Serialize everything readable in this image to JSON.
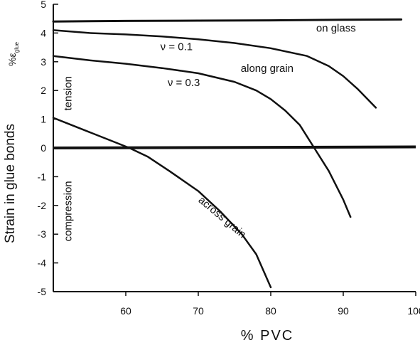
{
  "chart_data": {
    "type": "line",
    "xlabel": "% PVC",
    "ylabel": "Strain in glue bonds",
    "ylabel_unit": "%ε",
    "ylabel_unit_sub": "glue",
    "xlim": [
      50,
      100
    ],
    "ylim": [
      -5,
      5
    ],
    "x_ticks": [
      60,
      70,
      80,
      90,
      100
    ],
    "y_ticks": [
      5,
      4,
      3,
      2,
      1,
      0,
      -1,
      -2,
      -3,
      -4,
      -5
    ],
    "x_tick_labels": [
      "60",
      "70",
      "80",
      "90",
      "100"
    ],
    "y_tick_labels": [
      "5",
      "4",
      "3",
      "2",
      "1",
      "0",
      "-1",
      "-2",
      "-3",
      "-4",
      "-5"
    ],
    "grid": false,
    "legend": "none",
    "series": [
      {
        "name": "on glass",
        "x": [
          50,
          60,
          70,
          80,
          90,
          98
        ],
        "y": [
          4.4,
          4.42,
          4.43,
          4.44,
          4.46,
          4.47
        ]
      },
      {
        "name": "along grain, ν=0.1",
        "x": [
          50,
          55,
          60,
          65,
          70,
          75,
          80,
          85,
          88,
          90,
          92,
          94.5
        ],
        "y": [
          4.1,
          4.0,
          3.95,
          3.88,
          3.78,
          3.65,
          3.47,
          3.2,
          2.85,
          2.5,
          2.05,
          1.4
        ]
      },
      {
        "name": "along grain, ν=0.3",
        "x": [
          50,
          55,
          60,
          65,
          70,
          75,
          78,
          80,
          82,
          84,
          86,
          88,
          90,
          91
        ],
        "y": [
          3.2,
          3.05,
          2.93,
          2.78,
          2.6,
          2.3,
          2.0,
          1.7,
          1.3,
          0.8,
          0.0,
          -0.8,
          -1.8,
          -2.4
        ]
      },
      {
        "name": "across grain",
        "x": [
          50,
          52,
          55,
          58,
          60.5,
          63,
          66,
          70,
          73,
          76,
          78,
          80
        ],
        "y": [
          1.05,
          0.85,
          0.55,
          0.25,
          0.0,
          -0.3,
          -0.8,
          -1.5,
          -2.2,
          -3.0,
          -3.7,
          -4.85
        ]
      }
    ],
    "zero_line": 0,
    "annotations": [
      {
        "text": "on glass",
        "x": 89,
        "y": 4.05
      },
      {
        "text": "ν = 0.1",
        "x": 67,
        "y": 3.4
      },
      {
        "text": "along grain",
        "x": 79.5,
        "y": 2.65
      },
      {
        "text": "ν = 0.3",
        "x": 68,
        "y": 2.15
      },
      {
        "text": "tension",
        "x": 52.5,
        "y": 1.9,
        "rotate": -90
      },
      {
        "text": "compression",
        "x": 52.5,
        "y": -2.2,
        "rotate": -90
      },
      {
        "text": "across grain",
        "x": 73,
        "y": -2.5,
        "rotate": 40
      }
    ]
  }
}
